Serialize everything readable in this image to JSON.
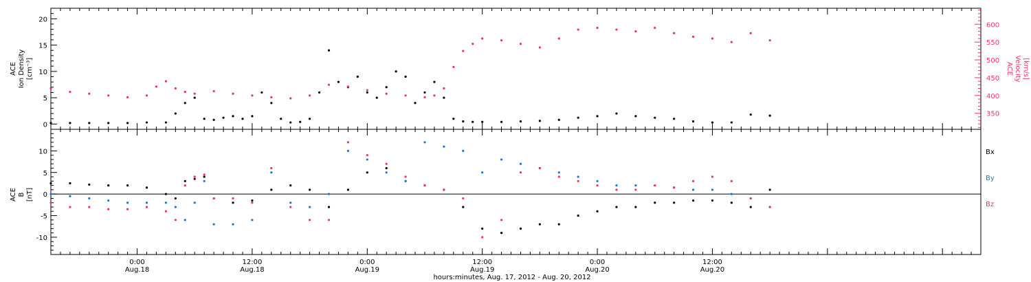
{
  "figure": {
    "xlabel": "hours:minutes, Aug. 17, 2012 - Aug. 20, 2012"
  },
  "colors": {
    "axis": "#000000",
    "black_series": "#000000",
    "velocity": "#ee3366",
    "by": "#1177dd",
    "bz": "#ee3366"
  },
  "chart_data": [
    {
      "type": "scatter",
      "panel": "top",
      "x_unit": "hours since 2012-08-17 00:00 UT",
      "xlim": [
        15,
        112
      ],
      "x_ticks": [
        {
          "x": 24,
          "label": "0:00",
          "sublabel": "Aug.18"
        },
        {
          "x": 36,
          "label": "12:00",
          "sublabel": "Aug.18"
        },
        {
          "x": 48,
          "label": "0:00",
          "sublabel": "Aug.19"
        },
        {
          "x": 60,
          "label": "12:00",
          "sublabel": "Aug.19"
        },
        {
          "x": 72,
          "label": "0:00",
          "sublabel": "Aug.20"
        },
        {
          "x": 84,
          "label": "12:00",
          "sublabel": "Aug.20"
        }
      ],
      "left_axis": {
        "label_lines": [
          "ACE",
          "Ion Density",
          "[cm⁻³]"
        ],
        "ylim": [
          -1,
          22
        ],
        "ticks": [
          0,
          5,
          10,
          15,
          20
        ]
      },
      "right_axis": {
        "label_lines": [
          "ACE",
          "Velocity",
          "[km/s]"
        ],
        "ylim": [
          305,
          645
        ],
        "ticks": [
          350,
          400,
          450,
          500,
          550,
          600
        ]
      },
      "series": [
        {
          "name": "Ion Density",
          "axis": "left",
          "color": "#000000",
          "x": [
            15,
            17,
            19,
            21,
            23,
            25,
            27,
            28,
            29,
            30,
            31,
            32,
            33,
            34,
            35,
            36,
            37,
            38,
            39,
            40,
            41,
            42,
            43,
            44,
            45,
            46,
            47,
            48,
            49,
            50,
            51,
            52,
            53,
            54,
            55,
            56,
            57,
            58,
            59,
            60,
            62,
            64,
            66,
            68,
            70,
            72,
            74,
            76,
            78,
            80,
            82,
            84,
            86,
            88,
            90
          ],
          "values": [
            0.2,
            0.2,
            0.2,
            0.2,
            0.2,
            0.3,
            0.3,
            2,
            4,
            5,
            1,
            0.8,
            1.2,
            1.5,
            1,
            1.5,
            6,
            4,
            1,
            0.3,
            0.4,
            1,
            6,
            14,
            8,
            7,
            9,
            6,
            5,
            7,
            10,
            9,
            4,
            6,
            8,
            5,
            1,
            0.5,
            0.4,
            0.4,
            0.4,
            0.5,
            0.6,
            0.8,
            1.2,
            1.5,
            2,
            1.5,
            1.2,
            1,
            0.5,
            0.3,
            0.3,
            1.8,
            1.6
          ]
        },
        {
          "name": "Velocity",
          "axis": "right",
          "color": "#ee3366",
          "x": [
            15,
            17,
            19,
            21,
            23,
            25,
            26,
            27,
            28,
            29,
            30,
            32,
            34,
            36,
            38,
            40,
            42,
            44,
            46,
            48,
            50,
            52,
            54,
            55,
            56,
            57,
            58,
            59,
            60,
            62,
            64,
            66,
            68,
            70,
            72,
            74,
            76,
            78,
            80,
            82,
            84,
            86,
            88,
            90
          ],
          "values": [
            420,
            410,
            405,
            400,
            395,
            400,
            425,
            440,
            420,
            410,
            405,
            412,
            405,
            400,
            395,
            392,
            400,
            430,
            425,
            415,
            405,
            400,
            395,
            400,
            420,
            480,
            525,
            545,
            560,
            555,
            545,
            535,
            560,
            585,
            590,
            585,
            580,
            590,
            575,
            565,
            560,
            550,
            575,
            555
          ]
        }
      ]
    },
    {
      "type": "scatter",
      "panel": "bottom",
      "x_unit": "hours since 2012-08-17 00:00 UT",
      "xlim": [
        15,
        112
      ],
      "left_axis": {
        "label_lines": [
          "ACE",
          "B",
          "[nT]"
        ],
        "ylim": [
          -14,
          15
        ],
        "ticks": [
          -10,
          -5,
          0,
          5,
          10
        ]
      },
      "legend_placement": "right",
      "series": [
        {
          "name": "Bx",
          "color": "#000000",
          "x": [
            15,
            17,
            19,
            21,
            23,
            25,
            27,
            28,
            29,
            30,
            31,
            32,
            34,
            36,
            38,
            40,
            42,
            44,
            46,
            48,
            50,
            52,
            54,
            56,
            58,
            60,
            62,
            64,
            66,
            68,
            70,
            72,
            74,
            76,
            78,
            80,
            82,
            84,
            86,
            88,
            90
          ],
          "values": [
            2.5,
            2.5,
            2.2,
            2,
            2,
            1.5,
            0,
            -1,
            3,
            3.5,
            4,
            -1,
            -2,
            -1.5,
            1,
            2,
            1,
            -3,
            1,
            5,
            6,
            3,
            2,
            1,
            -3,
            -8,
            -9,
            -8,
            -7,
            -7,
            -5,
            -4,
            -3,
            -3,
            -2,
            -2,
            -1.5,
            -1.5,
            -2,
            -3,
            1
          ]
        },
        {
          "name": "By",
          "color": "#1177dd",
          "x": [
            15,
            17,
            19,
            21,
            23,
            25,
            27,
            28,
            29,
            30,
            31,
            32,
            34,
            36,
            38,
            40,
            42,
            44,
            46,
            48,
            50,
            52,
            54,
            56,
            58,
            60,
            62,
            64,
            66,
            68,
            70,
            72,
            74,
            76,
            78,
            80,
            82,
            84,
            86,
            88,
            90
          ],
          "values": [
            0,
            -0.5,
            -1,
            -1.5,
            -2,
            -2,
            -2,
            -3,
            -6,
            -2,
            3,
            -7,
            -7,
            -6,
            5,
            -2,
            -3,
            0,
            10,
            8,
            5,
            3,
            12,
            11,
            10,
            5,
            8,
            7,
            6,
            5,
            4,
            3,
            2,
            2,
            2,
            1.5,
            1,
            1,
            0,
            -1,
            -3
          ]
        },
        {
          "name": "Bz",
          "color": "#ee3366",
          "x": [
            15,
            17,
            19,
            21,
            23,
            25,
            27,
            28,
            29,
            30,
            31,
            32,
            34,
            36,
            38,
            40,
            42,
            44,
            46,
            48,
            50,
            52,
            54,
            56,
            58,
            60,
            62,
            64,
            66,
            68,
            70,
            72,
            74,
            76,
            78,
            80,
            82,
            84,
            86,
            88,
            90
          ],
          "values": [
            -2,
            -3,
            -3,
            -3.5,
            -3.5,
            -3,
            -4,
            -6,
            2,
            4,
            4.5,
            -1,
            -1,
            -2,
            6,
            -3,
            -6,
            -6,
            12,
            9,
            7,
            4,
            2,
            1,
            -1,
            -10,
            -6,
            5,
            6,
            4,
            3,
            2,
            1,
            1,
            2,
            1.5,
            3,
            4,
            3,
            -1,
            -3
          ]
        }
      ]
    }
  ]
}
